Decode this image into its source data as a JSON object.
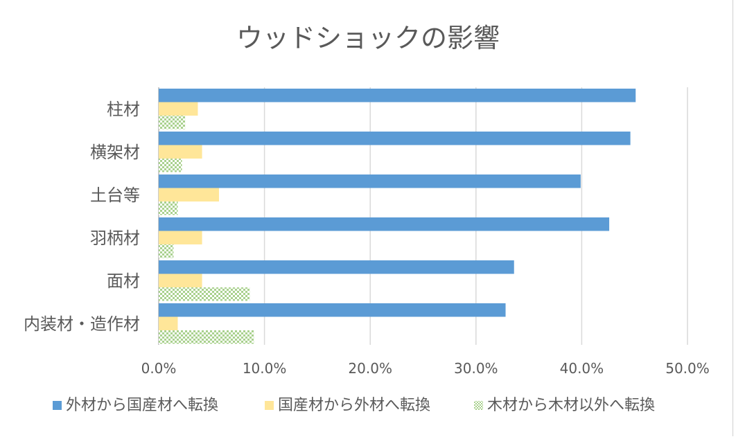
{
  "chart_data": {
    "type": "bar",
    "orientation": "horizontal",
    "title": "ウッドショックの影響",
    "categories": [
      "柱材",
      "横架材",
      "土台等",
      "羽柄材",
      "面材",
      "内装材・造作材"
    ],
    "series": [
      {
        "name": "外材から国産材へ転換",
        "color": "#5b9bd5",
        "pattern": "solid",
        "values": [
          45.1,
          44.6,
          39.9,
          42.6,
          33.6,
          32.8
        ]
      },
      {
        "name": "国産材から外材へ転換",
        "color": "#ffe699",
        "pattern": "solid",
        "values": [
          3.7,
          4.1,
          5.7,
          4.1,
          4.1,
          1.8
        ]
      },
      {
        "name": "木材から木材以外へ転換",
        "color": "#a9d18e",
        "pattern": "checker",
        "values": [
          2.5,
          2.2,
          1.8,
          1.4,
          8.6,
          9.0
        ]
      }
    ],
    "xlim": [
      0,
      50
    ],
    "xticks": [
      "0.0%",
      "10.0%",
      "20.0%",
      "30.0%",
      "40.0%",
      "50.0%"
    ],
    "grid": true,
    "legend_position": "bottom"
  }
}
